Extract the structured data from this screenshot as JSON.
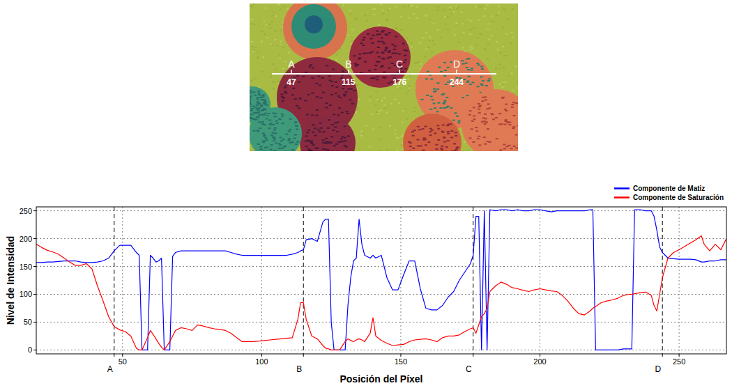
{
  "chart_data": {
    "type": "line",
    "x_label": "Posición del Píxel",
    "y_label": "Nivel de Intensidad",
    "x": [
      19,
      21,
      23,
      25,
      27,
      29,
      31,
      33,
      35,
      37,
      39,
      41,
      43,
      45,
      47,
      49,
      51,
      53,
      55,
      56,
      57,
      59,
      60,
      61,
      62,
      63,
      64,
      65,
      67,
      68,
      69,
      71,
      73,
      75,
      77,
      79,
      81,
      83,
      85,
      87,
      89,
      91,
      93,
      95,
      97,
      99,
      101,
      103,
      105,
      107,
      109,
      111,
      113,
      114,
      115,
      116,
      118,
      120,
      122,
      123,
      124,
      125,
      126,
      128,
      130,
      131,
      132,
      133,
      134,
      135,
      136,
      137,
      139,
      140,
      141,
      143,
      145,
      147,
      149,
      151,
      153,
      155,
      157,
      159,
      161,
      163,
      165,
      167,
      169,
      171,
      173,
      175,
      176,
      177,
      178,
      179,
      180,
      181,
      182,
      184,
      186,
      188,
      190,
      192,
      194,
      196,
      198,
      200,
      202,
      204,
      206,
      208,
      210,
      212,
      214,
      216,
      218,
      219,
      220,
      222,
      224,
      226,
      228,
      230,
      232,
      233,
      234,
      236,
      238,
      240,
      241,
      242,
      243,
      244,
      246,
      248,
      250,
      252,
      254,
      256,
      258,
      259,
      261,
      263,
      265,
      267
    ],
    "series": [
      {
        "name": "Componente de Matiz",
        "color": "#0000ff",
        "values": [
          157,
          157,
          158,
          158,
          159,
          160,
          160,
          160,
          158,
          157,
          157,
          158,
          160,
          165,
          178,
          188,
          188,
          188,
          175,
          170,
          0,
          0,
          170,
          165,
          158,
          160,
          165,
          0,
          0,
          168,
          175,
          178,
          178,
          178,
          178,
          178,
          178,
          178,
          178,
          178,
          175,
          172,
          170,
          170,
          170,
          170,
          170,
          170,
          170,
          170,
          170,
          172,
          175,
          178,
          180,
          198,
          200,
          195,
          230,
          235,
          235,
          50,
          0,
          0,
          0,
          80,
          130,
          160,
          165,
          235,
          190,
          170,
          165,
          170,
          165,
          170,
          130,
          108,
          108,
          135,
          160,
          160,
          110,
          75,
          72,
          72,
          80,
          95,
          105,
          125,
          140,
          155,
          170,
          240,
          240,
          0,
          250,
          0,
          252,
          250,
          252,
          252,
          250,
          252,
          250,
          250,
          252,
          252,
          250,
          248,
          250,
          250,
          250,
          250,
          250,
          250,
          252,
          252,
          0,
          0,
          0,
          0,
          0,
          2,
          2,
          2,
          252,
          252,
          250,
          250,
          240,
          215,
          185,
          175,
          165,
          164,
          163,
          163,
          163,
          162,
          158,
          158,
          160,
          160,
          162,
          162
        ]
      },
      {
        "name": "Componente de Saturación",
        "color": "#ff0000",
        "values": [
          190,
          184,
          179,
          176,
          172,
          165,
          158,
          152,
          152,
          155,
          146,
          115,
          88,
          60,
          42,
          36,
          33,
          25,
          3,
          0,
          0,
          22,
          35,
          28,
          20,
          12,
          5,
          0,
          15,
          25,
          35,
          40,
          38,
          35,
          45,
          43,
          40,
          38,
          37,
          35,
          30,
          22,
          15,
          15,
          15,
          16,
          17,
          18,
          19,
          20,
          21,
          22,
          55,
          85,
          85,
          55,
          25,
          20,
          8,
          3,
          2,
          0,
          0,
          0,
          15,
          20,
          17,
          15,
          18,
          20,
          18,
          15,
          30,
          58,
          25,
          17,
          12,
          8,
          9,
          10,
          15,
          18,
          19,
          20,
          18,
          15,
          22,
          25,
          25,
          27,
          33,
          38,
          40,
          30,
          45,
          60,
          65,
          75,
          105,
          115,
          122,
          118,
          112,
          110,
          107,
          105,
          108,
          110,
          108,
          106,
          105,
          98,
          88,
          75,
          65,
          63,
          70,
          75,
          78,
          85,
          88,
          90,
          93,
          98,
          100,
          100,
          101,
          103,
          104,
          98,
          80,
          70,
          100,
          130,
          165,
          175,
          180,
          186,
          192,
          198,
          205,
          190,
          178,
          190,
          180,
          200
        ]
      }
    ],
    "xlim": [
      19,
      267
    ],
    "ylim": [
      -7,
      257
    ],
    "xticks": [
      50,
      100,
      150,
      200,
      250
    ],
    "yticks": [
      0,
      50,
      100,
      150,
      200,
      250
    ],
    "grid": true,
    "legend": "top right",
    "annotations": [
      {
        "label": "A",
        "x": 47
      },
      {
        "label": "B",
        "x": 115
      },
      {
        "label": "C",
        "x": 176
      },
      {
        "label": "D",
        "x": 244
      }
    ]
  }
}
